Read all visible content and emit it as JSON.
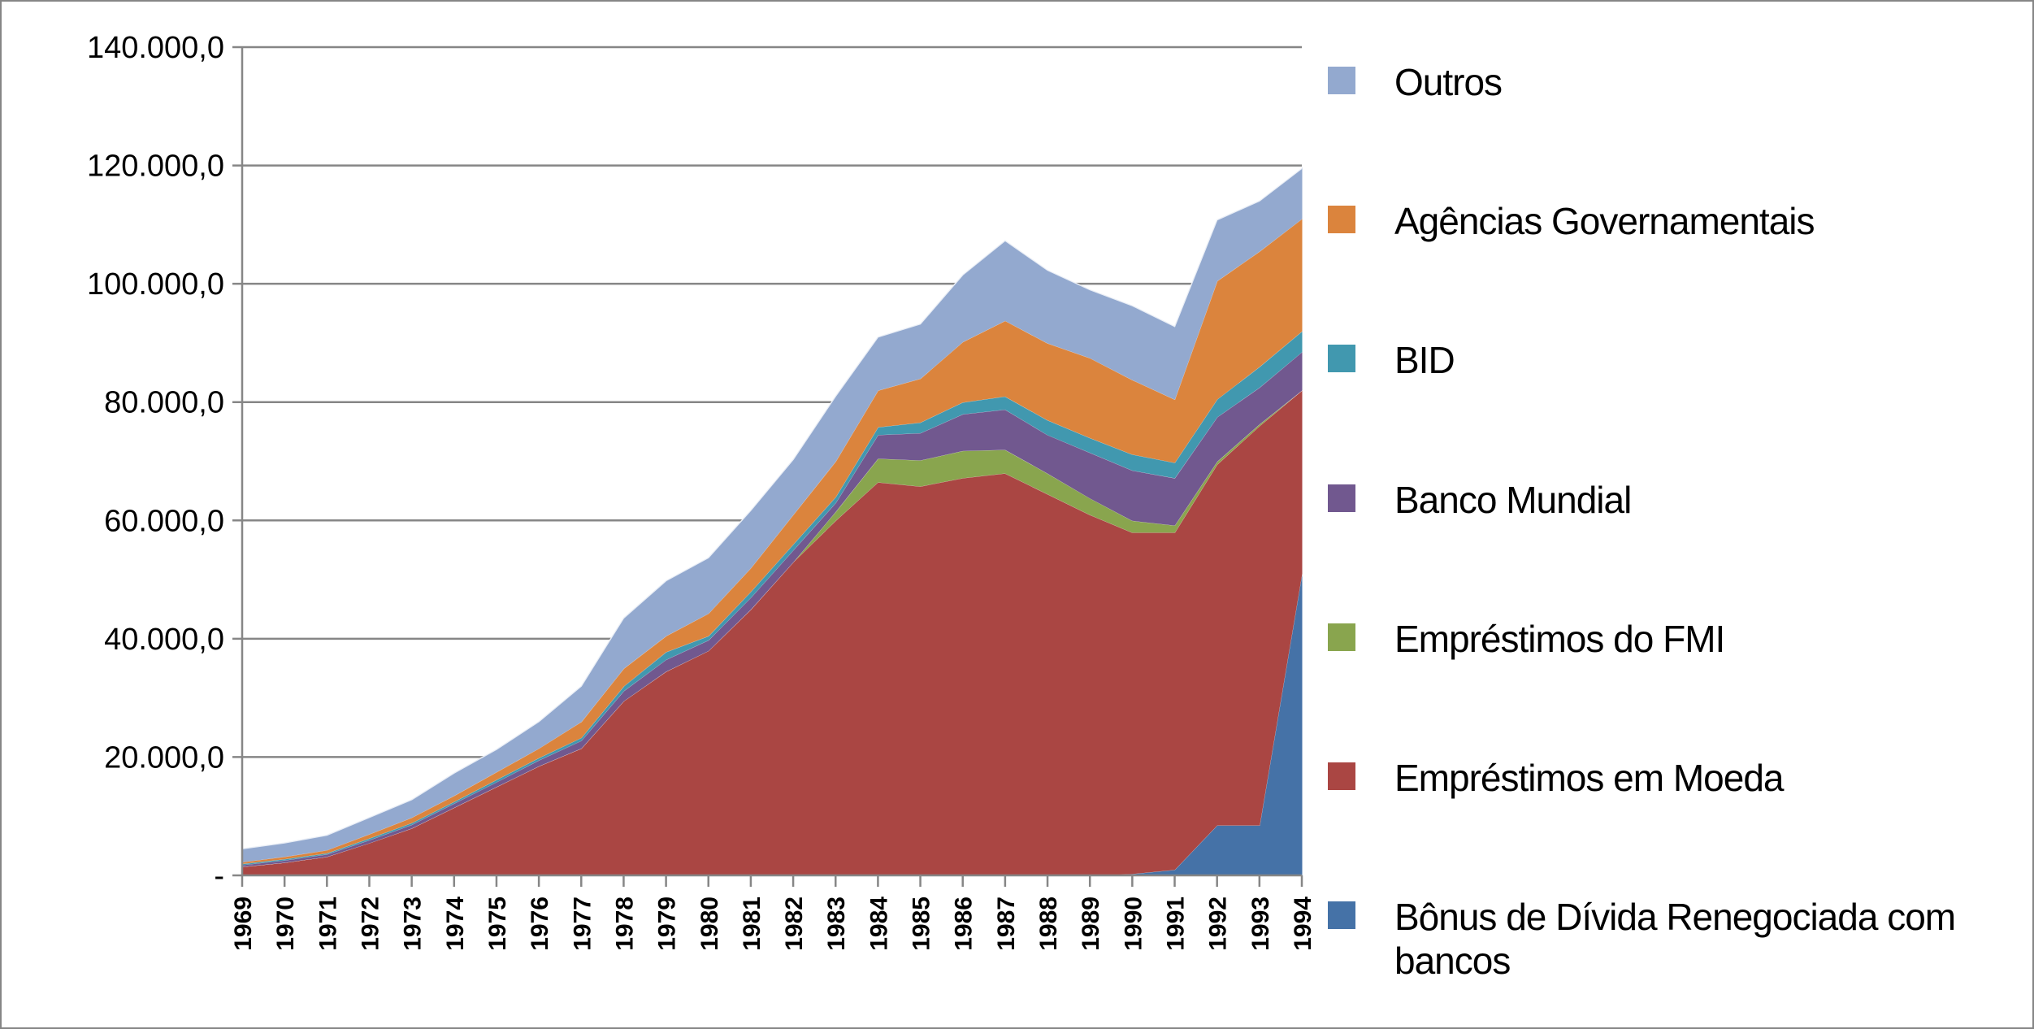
{
  "chart_data": {
    "type": "area",
    "stacked": true,
    "title": "",
    "xlabel": "",
    "ylabel": "",
    "ylim": [
      0,
      140000
    ],
    "y_tick_values": [
      0,
      20000,
      40000,
      60000,
      80000,
      100000,
      120000,
      140000
    ],
    "y_tick_labels": [
      "-",
      "20.000,0",
      "40.000,0",
      "60.000,0",
      "80.000,0",
      "100.000,0",
      "120.000,0",
      "140.000,0"
    ],
    "grid": true,
    "legend_position": "right",
    "categories": [
      "1969",
      "1970",
      "1971",
      "1972",
      "1973",
      "1974",
      "1975",
      "1976",
      "1977",
      "1978",
      "1979",
      "1980",
      "1981",
      "1982",
      "1983",
      "1984",
      "1985",
      "1986",
      "1987",
      "1988",
      "1989",
      "1990",
      "1991",
      "1992",
      "1993",
      "1994"
    ],
    "series": [
      {
        "name": "Bônus de Dívida Renegociada com bancos",
        "color": "#4572A7",
        "values": [
          0,
          0,
          0,
          0,
          0,
          0,
          0,
          0,
          0,
          0,
          0,
          0,
          0,
          0,
          0,
          0,
          0,
          0,
          0,
          0,
          0,
          300,
          1000,
          8500,
          8500,
          51000
        ]
      },
      {
        "name": "Empréstimos em Moeda",
        "color": "#AA4643",
        "values": [
          1500,
          2200,
          3200,
          5500,
          8000,
          11500,
          15000,
          18500,
          21500,
          29500,
          34500,
          38000,
          45000,
          53000,
          60000,
          66500,
          65800,
          67200,
          68000,
          64500,
          61000,
          57700,
          57000,
          61000,
          67500,
          31000
        ]
      },
      {
        "name": "Empréstimos do FMI",
        "color": "#89A54E",
        "values": [
          0,
          0,
          0,
          0,
          0,
          0,
          0,
          0,
          0,
          0,
          0,
          0,
          0,
          0,
          1500,
          4000,
          4400,
          4600,
          4000,
          3500,
          2800,
          2000,
          1200,
          500,
          300,
          0
        ]
      },
      {
        "name": "Banco Mundial",
        "color": "#71588F",
        "values": [
          300,
          400,
          400,
          500,
          600,
          700,
          800,
          1000,
          1300,
          1700,
          2000,
          1800,
          2000,
          2000,
          1500,
          4000,
          4600,
          6200,
          6800,
          6500,
          7700,
          8500,
          8000,
          7500,
          6200,
          6500
        ]
      },
      {
        "name": "BID",
        "color": "#4198AF",
        "values": [
          200,
          200,
          200,
          300,
          300,
          300,
          400,
          400,
          500,
          800,
          1300,
          700,
          1000,
          1000,
          1000,
          1300,
          1800,
          2000,
          2200,
          2500,
          2500,
          2700,
          2600,
          3000,
          3500,
          3500
        ]
      },
      {
        "name": "Agências Governamentais",
        "color": "#DB843D",
        "values": [
          300,
          400,
          500,
          700,
          900,
          1000,
          1300,
          1600,
          2700,
          3000,
          2700,
          3800,
          4000,
          5000,
          6000,
          6200,
          7400,
          10200,
          12800,
          13000,
          13500,
          12600,
          10700,
          20000,
          19500,
          19000
        ]
      },
      {
        "name": "Outros",
        "color": "#93A9CF",
        "values": [
          2200,
          2300,
          2500,
          2800,
          3000,
          3800,
          3800,
          4500,
          6000,
          8500,
          9300,
          9400,
          9700,
          9300,
          11000,
          9000,
          9200,
          11300,
          13500,
          12300,
          11500,
          12500,
          12300,
          10300,
          8500,
          8500
        ]
      }
    ],
    "legend_order": [
      "Outros",
      "Agências Governamentais",
      "BID",
      "Banco Mundial",
      "Empréstimos do FMI",
      "Empréstimos em Moeda",
      "Bônus de Dívida Renegociada com bancos"
    ]
  }
}
